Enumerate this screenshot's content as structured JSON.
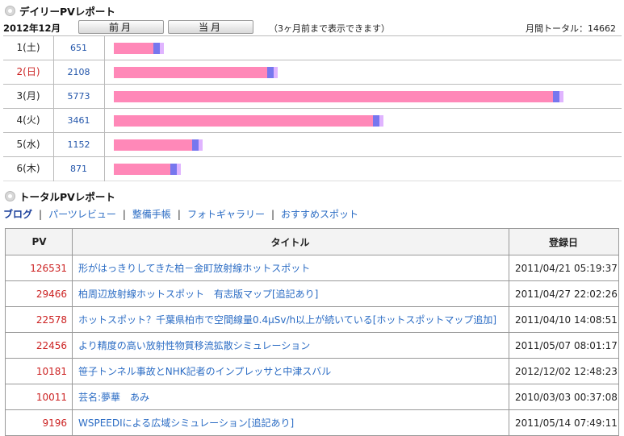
{
  "daily_report": {
    "title": "デイリーPVレポート",
    "month": "2012年12月",
    "prev_label": "前月",
    "current_label": "当月",
    "note": "（3ヶ月前まで表示できます）",
    "monthly_total": "月間トータル：14662",
    "colors": {
      "bar_main": "#ff88b8",
      "bar_accent": "#7777ee",
      "bar_tail": "#e0b4ff",
      "sunday_red": "#cc2222",
      "count_blue": "#2255aa"
    },
    "days": [
      {
        "label": "1(土)",
        "count": "651",
        "sunday": false,
        "pv": 651
      },
      {
        "label": "2(日)",
        "count": "2108",
        "sunday": true,
        "pv": 2108
      },
      {
        "label": "3(月)",
        "count": "5773",
        "sunday": false,
        "pv": 5773
      },
      {
        "label": "4(火)",
        "count": "3461",
        "sunday": false,
        "pv": 3461
      },
      {
        "label": "5(水)",
        "count": "1152",
        "sunday": false,
        "pv": 1152
      },
      {
        "label": "6(木)",
        "count": "871",
        "sunday": false,
        "pv": 871
      }
    ]
  },
  "total_report": {
    "title": "トータルPVレポート",
    "tabs": [
      {
        "label": "ブログ",
        "active": true
      },
      {
        "label": "パーツレビュー",
        "active": false
      },
      {
        "label": "整備手帳",
        "active": false
      },
      {
        "label": "フォトギャラリー",
        "active": false
      },
      {
        "label": "おすすめスポット",
        "active": false
      }
    ],
    "columns": {
      "pv": "PV",
      "title": "タイトル",
      "date": "登録日"
    },
    "rows": [
      {
        "pv": "126531",
        "title": "形がはっきりしてきた柏－金町放射線ホットスポット",
        "date": "2011/04/21 05:19:37"
      },
      {
        "pv": "29466",
        "title": "柏周辺放射線ホットスポット　有志版マップ[追記あり]",
        "date": "2011/04/27 22:02:26"
      },
      {
        "pv": "22578",
        "title": "ホットスポット？千葉県柏市で空間線量0.4μSv/h以上が続いている[ホットスポットマップ追加]",
        "date": "2011/04/10 14:08:51"
      },
      {
        "pv": "22456",
        "title": "より精度の高い放射性物質移流拡散シミュレーション",
        "date": "2011/05/07 08:01:17"
      },
      {
        "pv": "10181",
        "title": "笹子トンネル事故とNHK記者のインプレッサと中津スバル",
        "date": "2012/12/02 12:48:23"
      },
      {
        "pv": "10011",
        "title": "芸名:夢華　あみ",
        "date": "2010/03/03 00:37:08"
      },
      {
        "pv": "9196",
        "title": "WSPEEDIによる広域シミュレーション[追記あり]",
        "date": "2011/05/14 07:49:11"
      }
    ]
  }
}
